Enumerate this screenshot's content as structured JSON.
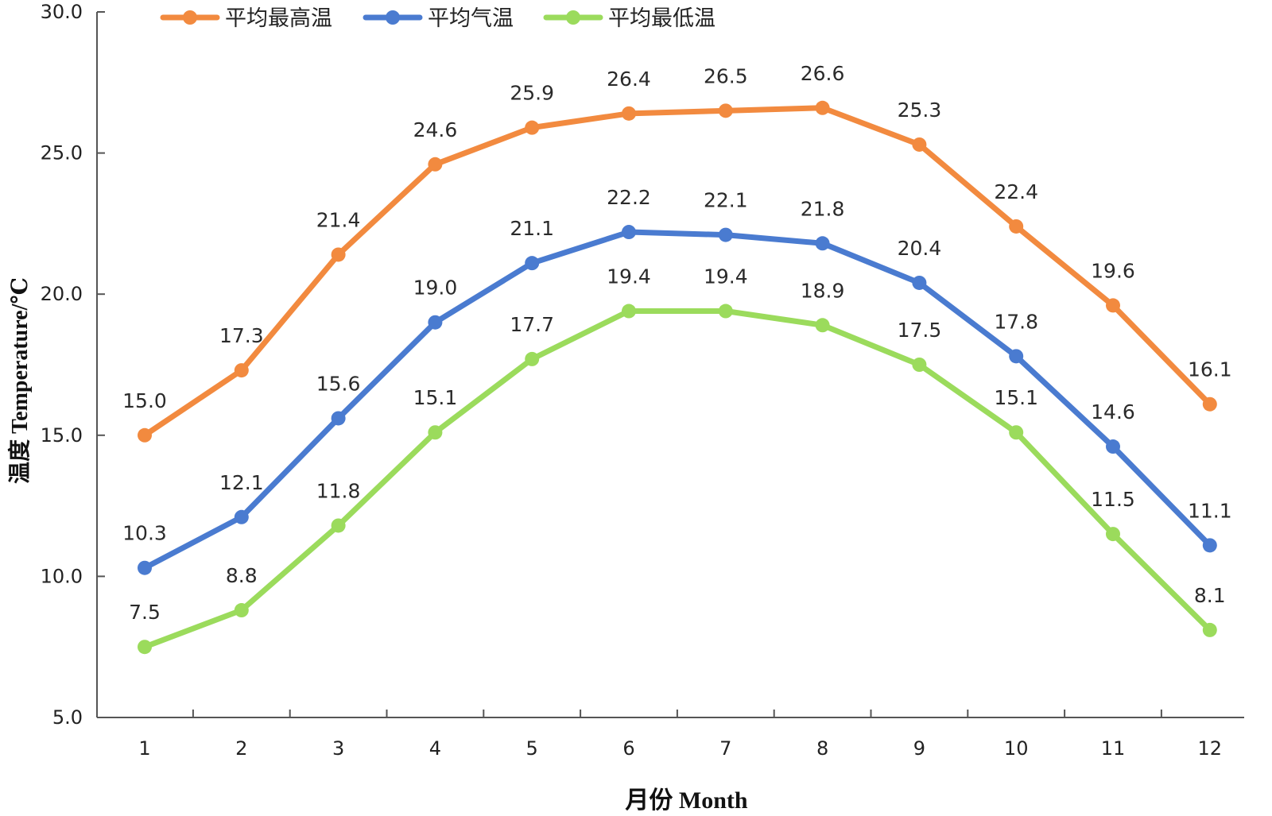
{
  "chart_data": {
    "type": "line",
    "title": "",
    "xlabel": "月份  Month",
    "ylabel": "温度  Temperature/℃",
    "ylim": [
      5.0,
      30.0
    ],
    "yticks": [
      "5.0",
      "10.0",
      "15.0",
      "20.0",
      "25.0",
      "30.0"
    ],
    "categories": [
      "1",
      "2",
      "3",
      "4",
      "5",
      "6",
      "7",
      "8",
      "9",
      "10",
      "11",
      "12"
    ],
    "legend_position": "top-left",
    "grid": false,
    "series": [
      {
        "name": "平均最高温",
        "color": "#F28A3F",
        "values": [
          15.0,
          17.3,
          21.4,
          24.6,
          25.9,
          26.4,
          26.5,
          26.6,
          25.3,
          22.4,
          19.6,
          16.1
        ],
        "labels": [
          "15.0",
          "17.3",
          "21.4",
          "24.6",
          "25.9",
          "26.4",
          "26.5",
          "26.6",
          "25.3",
          "22.4",
          "19.6",
          "16.1"
        ]
      },
      {
        "name": "平均气温",
        "color": "#4A7BD0",
        "values": [
          10.3,
          12.1,
          15.6,
          19.0,
          21.1,
          22.2,
          22.1,
          21.8,
          20.4,
          17.8,
          14.6,
          11.1
        ],
        "labels": [
          "10.3",
          "12.1",
          "15.6",
          "19.0",
          "21.1",
          "22.2",
          "22.1",
          "21.8",
          "20.4",
          "17.8",
          "14.6",
          "11.1"
        ]
      },
      {
        "name": "平均最低温",
        "color": "#9BDB5C",
        "values": [
          7.5,
          8.8,
          11.8,
          15.1,
          17.7,
          19.4,
          19.4,
          18.9,
          17.5,
          15.1,
          11.5,
          8.1
        ],
        "labels": [
          "7.5",
          "8.8",
          "11.8",
          "15.1",
          "17.7",
          "19.4",
          "19.4",
          "18.9",
          "17.5",
          "15.1",
          "11.5",
          "8.1"
        ]
      }
    ]
  }
}
